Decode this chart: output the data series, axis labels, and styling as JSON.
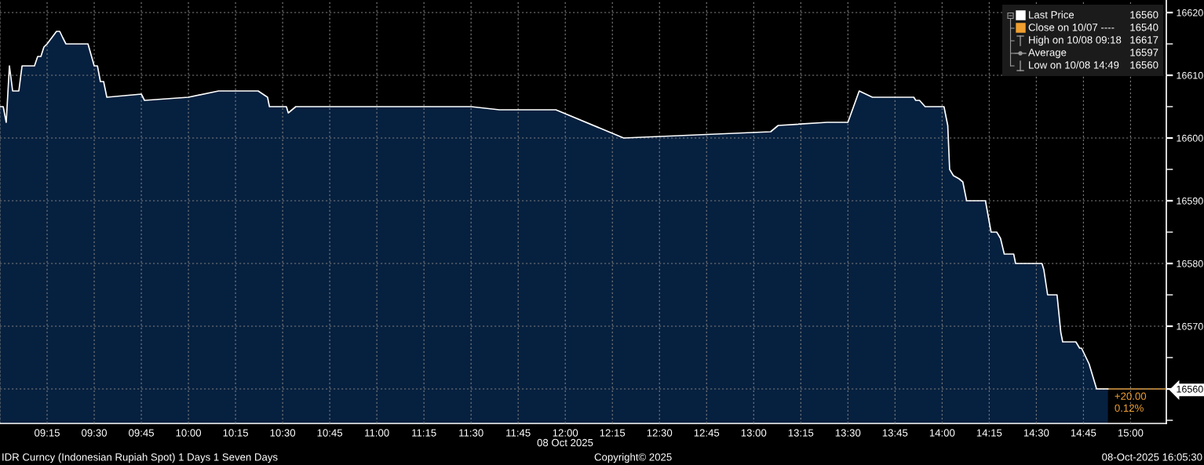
{
  "chart_data": [
    {
      "type": "area",
      "title": "IDR Curncy (Indonesian Rupiah Spot) 1 Days 1 Seven Days",
      "xlabel": "08 Oct 2025",
      "x": [
        9.0,
        9.017,
        9.033,
        9.05,
        9.067,
        9.1,
        9.117,
        9.183,
        9.2,
        9.217,
        9.233,
        9.25,
        9.3,
        9.317,
        9.333,
        9.35,
        9.467,
        9.5,
        9.517,
        9.533,
        9.55,
        9.567,
        9.75,
        9.767,
        10.0,
        10.16,
        10.37,
        10.42,
        10.43,
        10.52,
        10.53,
        10.57,
        11.5,
        11.65,
        11.95,
        12.31,
        13.09,
        13.13,
        13.39,
        13.5,
        13.56,
        13.63,
        13.85,
        13.86,
        13.88,
        13.91,
        14.01,
        14.03,
        14.04,
        14.06,
        14.09,
        14.11,
        14.13,
        14.23,
        14.26,
        14.29,
        14.31,
        14.33,
        14.38,
        14.39,
        14.53,
        14.54,
        14.56,
        14.61,
        14.63,
        14.64,
        14.71,
        14.73,
        14.74,
        14.78,
        14.82,
        14.88
      ],
      "series": [
        {
          "color": "#ffffff",
          "values": [
            16605,
            16605,
            16602.5,
            16611.5,
            16607.5,
            16607.5,
            16611.5,
            16611.5,
            16613,
            16613,
            16614.5,
            16615,
            16617,
            16617,
            16616,
            16615,
            16615,
            16611.5,
            16611.5,
            16609,
            16609,
            16606.5,
            16607,
            16606,
            16606.5,
            16607.5,
            16607.5,
            16606.5,
            16605,
            16605,
            16604,
            16605,
            16605,
            16604.5,
            16604.5,
            16600,
            16601,
            16602,
            16602.5,
            16602.5,
            16607.5,
            16606.5,
            16606.5,
            16606,
            16606,
            16605,
            16605,
            16602,
            16595,
            16594,
            16593.5,
            16593,
            16590,
            16590,
            16585,
            16585,
            16584,
            16581.5,
            16581.5,
            16580,
            16580,
            16579,
            16575,
            16575,
            16569,
            16567.5,
            16567.5,
            16566.5,
            16566.5,
            16564,
            16560,
            16560
          ]
        }
      ],
      "xlim": [
        9.0,
        15.19
      ],
      "xticks": [
        {
          "value": 9.25,
          "label": "09:15"
        },
        {
          "value": 9.5,
          "label": "09:30"
        },
        {
          "value": 9.75,
          "label": "09:45"
        },
        {
          "value": 10.0,
          "label": "10:00"
        },
        {
          "value": 10.25,
          "label": "10:15"
        },
        {
          "value": 10.5,
          "label": "10:30"
        },
        {
          "value": 10.75,
          "label": "10:45"
        },
        {
          "value": 11.0,
          "label": "11:00"
        },
        {
          "value": 11.25,
          "label": "11:15"
        },
        {
          "value": 11.5,
          "label": "11:30"
        },
        {
          "value": 11.75,
          "label": "11:45"
        },
        {
          "value": 12.0,
          "label": "12:00"
        },
        {
          "value": 12.25,
          "label": "12:15"
        },
        {
          "value": 12.5,
          "label": "12:30"
        },
        {
          "value": 12.75,
          "label": "12:45"
        },
        {
          "value": 13.0,
          "label": "13:00"
        },
        {
          "value": 13.25,
          "label": "13:15"
        },
        {
          "value": 13.5,
          "label": "13:30"
        },
        {
          "value": 13.75,
          "label": "13:45"
        },
        {
          "value": 14.0,
          "label": "14:00"
        },
        {
          "value": 14.25,
          "label": "14:15"
        },
        {
          "value": 14.5,
          "label": "14:30"
        },
        {
          "value": 14.75,
          "label": "14:45"
        },
        {
          "value": 15.0,
          "label": "15:00"
        }
      ],
      "ylim": [
        16554.5,
        16622
      ],
      "yticks": [
        {
          "value": 16555,
          "label": null
        },
        16560,
        {
          "value": 16565,
          "label": null
        },
        16570,
        {
          "value": 16575,
          "label": null
        },
        16580,
        {
          "value": 16585,
          "label": null
        },
        16590,
        {
          "value": 16595,
          "label": null
        },
        16600,
        {
          "value": 16605,
          "label": null
        },
        16610,
        {
          "value": 16615,
          "label": null
        },
        16620
      ],
      "grid": true,
      "ref_lines": [
        {
          "axis": "y",
          "value": 16560,
          "color": "#f0a030"
        }
      ],
      "annotations": [
        {
          "text": "+20.00\n0.12%",
          "x": 14.88,
          "y": 16560
        },
        "Copyright© 2025",
        "08-Oct-2025 16:05:30"
      ]
    },
    {
      "type": "other",
      "annotations": [
        "Last Price",
        "16560",
        "Close on 10/07 ----",
        "16540",
        "High on 10/08 09:18",
        "16617",
        "Average",
        "16597",
        "Low on 10/08 14:49",
        "16560"
      ]
    }
  ]
}
